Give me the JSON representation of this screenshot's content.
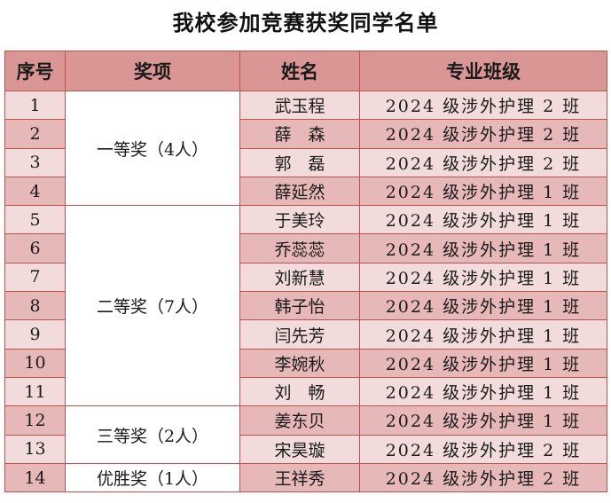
{
  "title": "我校参加竞赛获奖同学名单",
  "headers": [
    "序号",
    "奖项",
    "姓名",
    "专业班级"
  ],
  "awards": [
    {
      "label": "一等奖（4人）",
      "count": 4
    },
    {
      "label": "二等奖（7人）",
      "count": 7
    },
    {
      "label": "三等奖（2人）",
      "count": 2
    },
    {
      "label": "优胜奖（1人）",
      "count": 1
    }
  ],
  "rows": [
    {
      "no": "1",
      "name": "武玉程",
      "class": "2024 级涉外护理 2 班"
    },
    {
      "no": "2",
      "name": "薛　森",
      "class": "2024 级涉外护理 2 班"
    },
    {
      "no": "3",
      "name": "郭　磊",
      "class": "2024 级涉外护理 2 班"
    },
    {
      "no": "4",
      "name": "薛延然",
      "class": "2024 级涉外护理 1 班"
    },
    {
      "no": "5",
      "name": "于美玲",
      "class": "2024 级涉外护理 1 班"
    },
    {
      "no": "6",
      "name": "乔蕊蕊",
      "class": "2024 级涉外护理 1 班"
    },
    {
      "no": "7",
      "name": "刘新慧",
      "class": "2024 级涉外护理 1 班"
    },
    {
      "no": "8",
      "name": "韩子怡",
      "class": "2024 级涉外护理 1 班"
    },
    {
      "no": "9",
      "name": "闫先芳",
      "class": "2024 级涉外护理 1 班"
    },
    {
      "no": "10",
      "name": "李婉秋",
      "class": "2024 级涉外护理 1 班"
    },
    {
      "no": "11",
      "name": "刘　畅",
      "class": "2024 级涉外护理 1 班"
    },
    {
      "no": "12",
      "name": "姜东贝",
      "class": "2024 级涉外护理 1 班"
    },
    {
      "no": "13",
      "name": "宋昊璇",
      "class": "2024 级涉外护理 2 班"
    },
    {
      "no": "14",
      "name": "王祥秀",
      "class": "2024 级涉外护理 2 班"
    }
  ],
  "colors": {
    "header": "#d99694",
    "row_light": "#f2dcdb",
    "row_dark": "#e6b8b7",
    "border": "#c0504d"
  }
}
